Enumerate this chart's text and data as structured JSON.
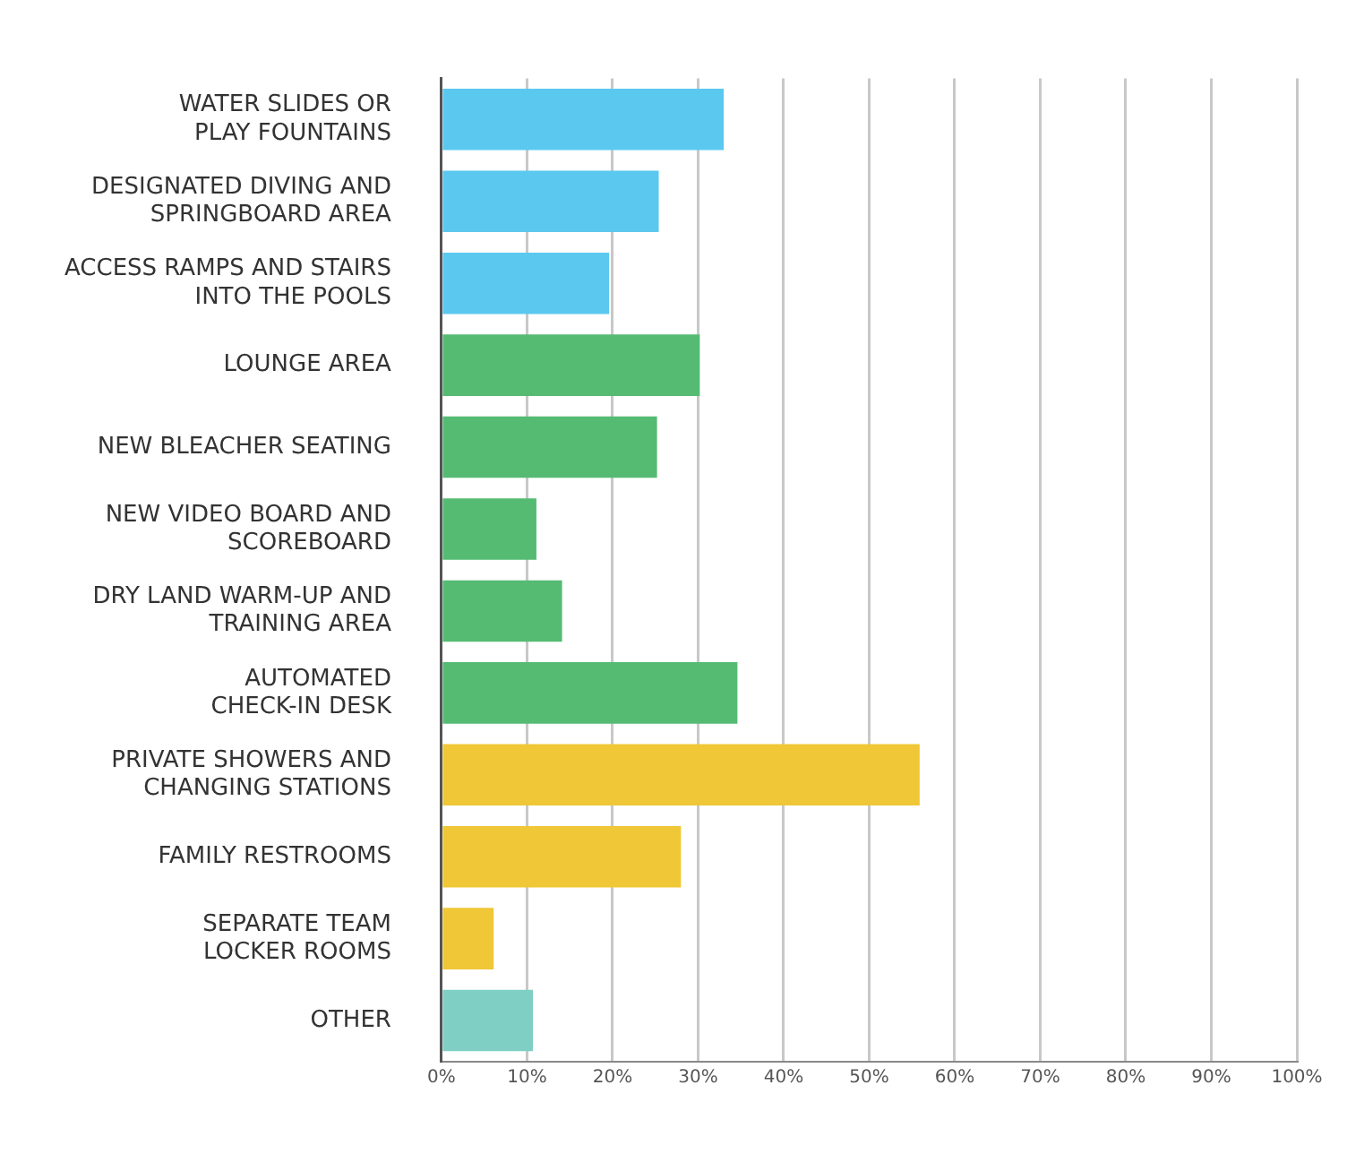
{
  "chart_data": {
    "type": "bar",
    "orientation": "horizontal",
    "categories": [
      "WATER SLIDES OR\nPLAY FOUNTAINS",
      "DESIGNATED DIVING AND\nSPRINGBOARD AREA",
      "ACCESS RAMPS AND STAIRS\nINTO THE POOLS",
      "LOUNGE AREA",
      "NEW BLEACHER SEATING",
      "NEW VIDEO BOARD AND\nSCOREBOARD",
      "DRY LAND WARM-UP AND\nTRAINING AREA",
      "AUTOMATED\nCHECK-IN DESK",
      "PRIVATE SHOWERS AND\nCHANGING STATIONS",
      "FAMILY RESTROOMS",
      "SEPARATE TEAM\nLOCKER ROOMS",
      "OTHER"
    ],
    "values": [
      33,
      25.4,
      19.6,
      30.2,
      25.2,
      11.1,
      14.1,
      34.6,
      55.9,
      28,
      6.1,
      10.7
    ],
    "colors": [
      "#5bc8f0",
      "#5bc8f0",
      "#5bc8f0",
      "#55bb73",
      "#55bb73",
      "#55bb73",
      "#55bb73",
      "#55bb73",
      "#efc737",
      "#efc737",
      "#efc737",
      "#7fcfc4"
    ],
    "xlim": [
      0,
      100
    ],
    "xticks": [
      {
        "value": 0,
        "label": "0%"
      },
      {
        "value": 10,
        "label": "10%"
      },
      {
        "value": 20,
        "label": "20%"
      },
      {
        "value": 30,
        "label": "30%"
      },
      {
        "value": 40,
        "label": "40%"
      },
      {
        "value": 50,
        "label": "50%"
      },
      {
        "value": 60,
        "label": "60%"
      },
      {
        "value": 70,
        "label": "70%"
      },
      {
        "value": 80,
        "label": "80%"
      },
      {
        "value": 90,
        "label": "90%"
      },
      {
        "value": 100,
        "label": "100%"
      }
    ],
    "grid": "x",
    "legend": false
  }
}
